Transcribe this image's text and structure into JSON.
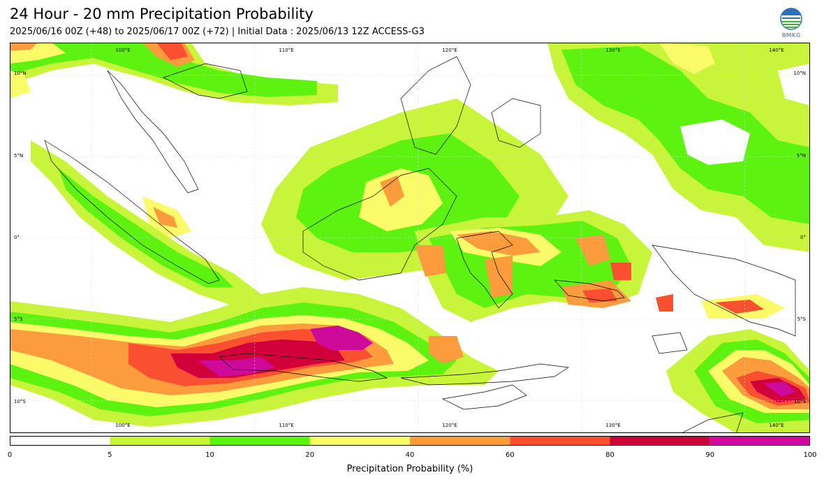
{
  "title": "24 Hour - 20 mm Precipitation Probability",
  "subtitle": "2025/06/16 00Z (+48) to 2025/06/17 00Z (+72) | Initial Data : 2025/06/13 12Z ACCESS-G3",
  "logo": {
    "text": "BMKG",
    "icon": "bmkg-logo-icon",
    "colors": [
      "#2e6fb7",
      "#4aa93c",
      "#ffffff"
    ]
  },
  "map": {
    "lon_range": [
      95,
      144
    ],
    "lat_range": [
      -12,
      12
    ],
    "lon_labels_top": [
      "100°E",
      "110°E",
      "120°E",
      "130°E",
      "140°E"
    ],
    "lon_labels_bottom": [
      "100°E",
      "110°E",
      "120°E",
      "130°E",
      "140°E"
    ],
    "lat_labels_left": [
      "10°N",
      "5°N",
      "0°",
      "5°S",
      "10°S"
    ],
    "lat_labels_right": [
      "10°N",
      "5°N",
      "0°",
      "5°S",
      "10°S"
    ]
  },
  "colorbar": {
    "label": "Precipitation Probability (%)",
    "ticks": [
      "0",
      "5",
      "10",
      "20",
      "40",
      "60",
      "80",
      "90",
      "100"
    ],
    "colors": [
      "#ffffff",
      "#c8f53a",
      "#5ef210",
      "#fbfb6a",
      "#fc9c3c",
      "#fb4f32",
      "#d2003a",
      "#cd0a9a"
    ]
  }
}
